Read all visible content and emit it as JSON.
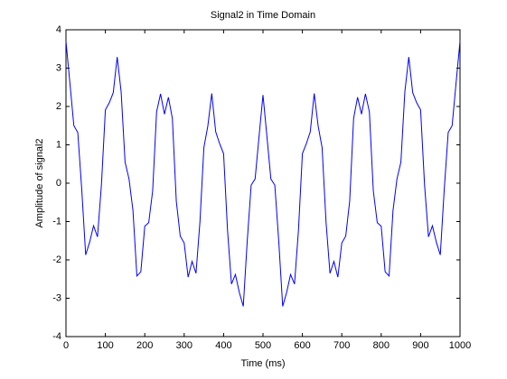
{
  "chart_data": {
    "type": "line",
    "title": "Signal2 in Time Domain",
    "x_label": "Time (ms)",
    "y_label": "Amplitude of signal2",
    "x": [
      0,
      10,
      20,
      30,
      40,
      50,
      60,
      70,
      80,
      90,
      100,
      110,
      120,
      130,
      140,
      150,
      160,
      170,
      180,
      190,
      200,
      210,
      220,
      230,
      240,
      250,
      260,
      270,
      280,
      290,
      300,
      310,
      320,
      330,
      340,
      350,
      360,
      370,
      380,
      390,
      400,
      410,
      420,
      430,
      440,
      450,
      460,
      470,
      480,
      490,
      500,
      510,
      520,
      530,
      540,
      550,
      560,
      570,
      580,
      590,
      600,
      610,
      620,
      630,
      640,
      650,
      660,
      670,
      680,
      690,
      700,
      710,
      720,
      730,
      740,
      750,
      760,
      770,
      780,
      790,
      800,
      810,
      820,
      830,
      840,
      850,
      860,
      870,
      880,
      890,
      900,
      910,
      920,
      930,
      940,
      950,
      960,
      970,
      980,
      990,
      1000
    ],
    "series": [
      {
        "name": "signal2",
        "color": "#0000ff",
        "values": [
          3.7,
          2.61,
          1.5,
          1.32,
          -0.16,
          -1.87,
          -1.54,
          -1.11,
          -1.4,
          -0.04,
          1.91,
          2.1,
          2.36,
          3.29,
          2.38,
          0.55,
          0.11,
          -0.71,
          -2.42,
          -2.31,
          -1.12,
          -1.03,
          -0.2,
          1.86,
          2.33,
          1.8,
          2.24,
          1.69,
          -0.47,
          -1.38,
          -1.56,
          -2.45,
          -2.04,
          -2.35,
          -1.01,
          0.93,
          1.49,
          2.34,
          1.34,
          1.03,
          0.77,
          -1.23,
          -2.63,
          -2.38,
          -2.85,
          -3.21,
          -1.51,
          -0.05,
          0.11,
          1.22,
          2.3,
          1.22,
          0.11,
          -0.05,
          -1.51,
          -3.21,
          -2.85,
          -2.38,
          -2.63,
          -1.23,
          0.77,
          1.03,
          1.34,
          2.34,
          1.49,
          0.93,
          -1.01,
          -2.35,
          -2.04,
          -2.45,
          -1.56,
          -1.38,
          -0.47,
          1.69,
          2.24,
          1.8,
          2.33,
          1.86,
          -0.2,
          -1.03,
          -1.12,
          -2.31,
          -2.42,
          -0.71,
          0.11,
          0.55,
          2.38,
          3.29,
          2.36,
          2.1,
          1.91,
          -0.04,
          -1.4,
          -1.11,
          -1.54,
          -1.87,
          -0.16,
          1.32,
          1.5,
          2.61,
          3.7
        ]
      }
    ],
    "xlim": [
      0,
      1000
    ],
    "xticks": [
      0,
      100,
      200,
      300,
      400,
      500,
      600,
      700,
      800,
      900,
      1000
    ],
    "ylim": [
      -4,
      4
    ],
    "yticks": [
      -4,
      -3,
      -2,
      -1,
      0,
      1,
      2,
      3,
      4
    ]
  }
}
